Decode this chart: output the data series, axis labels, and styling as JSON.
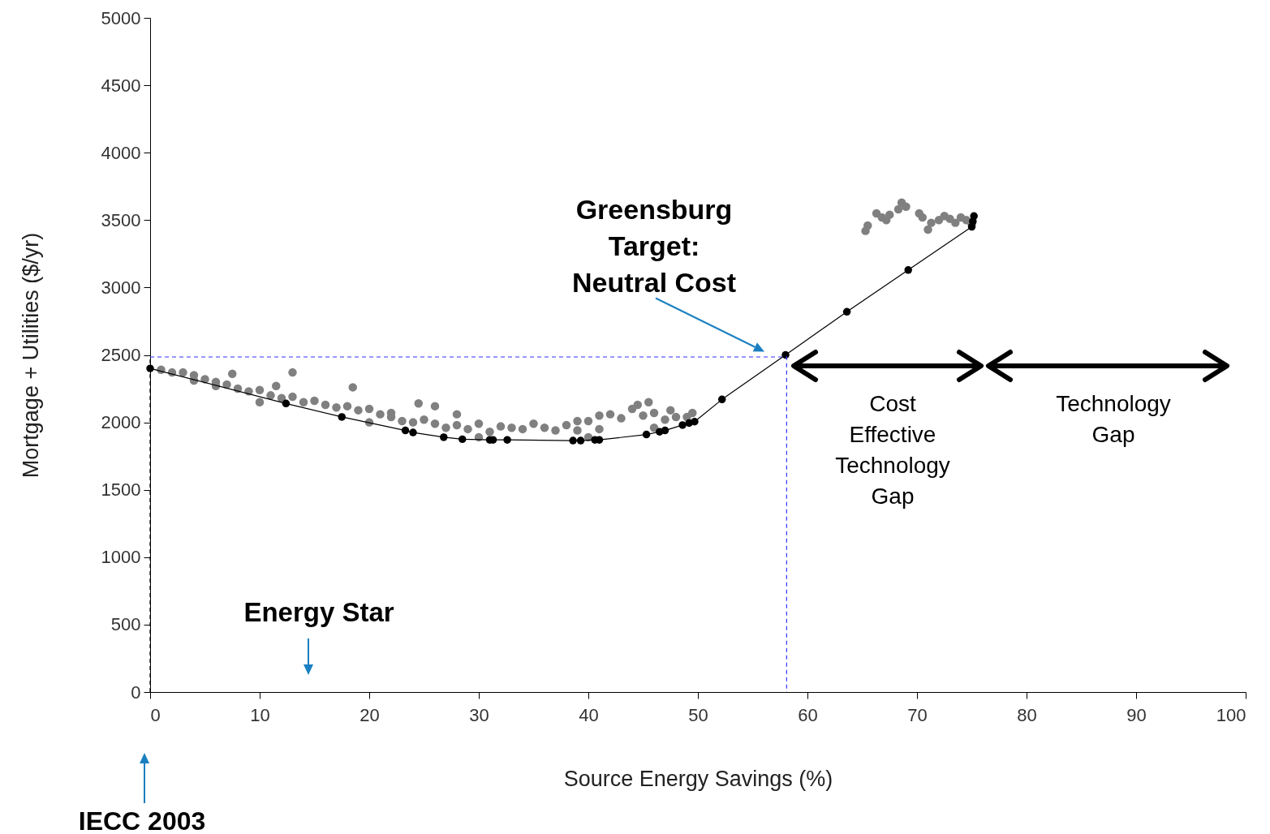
{
  "chart_data": {
    "type": "scatter",
    "xlabel": "Source Energy Savings (%)",
    "ylabel": "Mortgage + Utilities ($/yr)",
    "xlim": [
      0,
      100
    ],
    "xticks": [
      0,
      10,
      20,
      30,
      40,
      50,
      60,
      70,
      80,
      90,
      100
    ],
    "ylim": [
      0,
      5000
    ],
    "yticks": [
      0,
      500,
      1000,
      1500,
      2000,
      2500,
      3000,
      3500,
      4000,
      4500,
      5000
    ],
    "grid": false,
    "series": [
      {
        "marker": "circle",
        "color": "#808080",
        "x": [
          1,
          2,
          3,
          4,
          4,
          5,
          6,
          6,
          7,
          7.5,
          8,
          9,
          10,
          10,
          11,
          11.5,
          12,
          13,
          13,
          14,
          15,
          16,
          17,
          18,
          18.5,
          19,
          20,
          20,
          21,
          22,
          22,
          23,
          24,
          24.5,
          25,
          26,
          26,
          27,
          28,
          28,
          29,
          30,
          30,
          31,
          32,
          33,
          34,
          35,
          36,
          37,
          38,
          39,
          39,
          40,
          40,
          41,
          41,
          42,
          43,
          44,
          44.5,
          45,
          45.5,
          46,
          46,
          47,
          47.5,
          48,
          49,
          49.5,
          65.3,
          65.5,
          66.3,
          66.8,
          67.2,
          67.5,
          68.3,
          68.6,
          69,
          70.2,
          70.5,
          71,
          71.3,
          72,
          72.5,
          73,
          73.5,
          74,
          74.5,
          75
        ],
        "values": [
          2390,
          2370,
          2370,
          2350,
          2310,
          2320,
          2300,
          2270,
          2280,
          2360,
          2250,
          2230,
          2240,
          2150,
          2200,
          2270,
          2180,
          2190,
          2370,
          2150,
          2160,
          2130,
          2110,
          2120,
          2260,
          2090,
          2100,
          2000,
          2060,
          2070,
          2040,
          2010,
          2000,
          2140,
          2020,
          1990,
          2120,
          1960,
          1980,
          2060,
          1950,
          1990,
          1890,
          1930,
          1970,
          1960,
          1950,
          1990,
          1960,
          1940,
          1980,
          2010,
          1940,
          2010,
          1890,
          2050,
          1950,
          2060,
          2030,
          2100,
          2130,
          2050,
          2150,
          2070,
          1960,
          2020,
          2090,
          2040,
          2040,
          2070,
          3420,
          3460,
          3550,
          3520,
          3500,
          3540,
          3580,
          3630,
          3600,
          3550,
          3520,
          3430,
          3480,
          3500,
          3530,
          3510,
          3480,
          3520,
          3500,
          3470
        ]
      },
      {
        "type": "line",
        "marker": "circle",
        "line_style": "solid",
        "color": "#000000",
        "x": [
          0,
          12.4,
          17.5,
          23.3,
          24,
          26.8,
          28.5,
          31,
          31.3,
          32.6,
          38.6,
          39.3,
          40.6,
          41,
          45.3,
          46.5,
          47,
          48.6,
          49.2,
          49.7,
          52.2,
          58,
          63.6,
          69.2,
          75,
          75.1,
          75.2
        ],
        "values": [
          2400,
          2140,
          2040,
          1940,
          1925,
          1890,
          1875,
          1870,
          1870,
          1870,
          1865,
          1865,
          1870,
          1870,
          1910,
          1930,
          1940,
          1980,
          1995,
          2005,
          2170,
          2500,
          2820,
          3130,
          3450,
          3490,
          3530
        ]
      },
      {
        "type": "line",
        "marker": "none",
        "line_style": "dashed",
        "color": "#3333ff",
        "x": [
          0,
          58.1,
          58.1
        ],
        "values": [
          2485,
          2485,
          0
        ]
      },
      {
        "type": "line",
        "marker": "none",
        "line_style": "dashed",
        "color": "#000000",
        "x": [
          0,
          0
        ],
        "values": [
          0,
          2485
        ]
      }
    ],
    "annotations": [
      {
        "text": "Greensburg\nTarget:\nNeutral Cost",
        "x": 58,
        "y": 2500
      },
      "Cost\nEffective\nTechnology\nGap",
      "Technology\nGap",
      "Energy Star",
      "IECC 2003"
    ]
  }
}
